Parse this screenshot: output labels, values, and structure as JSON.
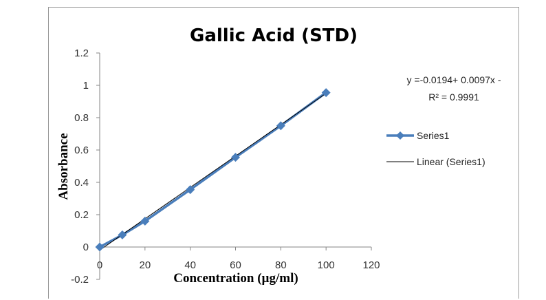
{
  "chart_data": {
    "type": "scatter",
    "title": "Gallic Acid  (STD)",
    "xlabel": "Concentration (µg/ml)",
    "ylabel": "Absorbance",
    "xlim": [
      0,
      120
    ],
    "ylim": [
      -0.2,
      1.2
    ],
    "xticks": [
      0,
      20,
      40,
      60,
      80,
      100,
      120
    ],
    "yticks": [
      -0.2,
      0,
      0.2,
      0.4,
      0.6,
      0.8,
      1,
      1.2
    ],
    "series": [
      {
        "name": "Series1",
        "color": "#4a7ebb",
        "marker": "diamond",
        "x": [
          0,
          10,
          20,
          40,
          60,
          80,
          100
        ],
        "y": [
          0,
          0.075,
          0.16,
          0.355,
          0.555,
          0.75,
          0.955
        ]
      }
    ],
    "trendline": {
      "name": "Linear (Series1)",
      "color": "#000000",
      "x": [
        0,
        100
      ],
      "y": [
        -0.0194,
        0.9506
      ]
    },
    "equation": "y =-0.0194+ 0.0097x -",
    "r_squared": "R² = 0.9991",
    "legend": {
      "position": "right",
      "entries": [
        "Series1",
        "Linear (Series1)"
      ]
    },
    "grid": false
  }
}
